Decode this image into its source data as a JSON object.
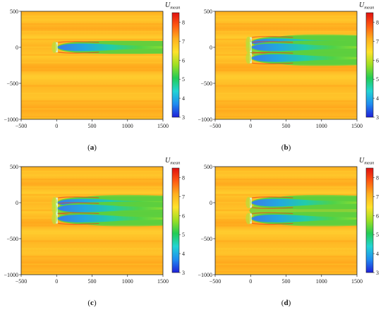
{
  "figure": {
    "variable_symbol": "U",
    "variable_subscript": "mean",
    "colormap": [
      "#1f1fd8",
      "#1f8cf0",
      "#22d4d4",
      "#22cc55",
      "#9ee022",
      "#ffe22a",
      "#ffb01e",
      "#ff5a12",
      "#e01010"
    ]
  },
  "chart_data": [
    {
      "type": "heatmap",
      "panel": "a",
      "caption": "(a)",
      "xlim": [
        -500,
        1500
      ],
      "ylim": [
        -1000,
        500
      ],
      "x_ticks": [
        "−500",
        "0",
        "500",
        "1000",
        "1500"
      ],
      "y_ticks": [
        "500",
        "0",
        "−500",
        "−1000"
      ],
      "colorbar_ticks": [
        "8",
        "7",
        "6",
        "5",
        "4",
        "3"
      ],
      "colorbar_range": [
        3,
        8.5
      ],
      "background_value": 7.4,
      "turbines_y": [
        0
      ],
      "wake_min_value": 4.2
    },
    {
      "type": "heatmap",
      "panel": "b",
      "caption": "(b)",
      "xlim": [
        -500,
        1500
      ],
      "ylim": [
        -1000,
        500
      ],
      "x_ticks": [
        "−500",
        "0",
        "500",
        "1000",
        "1500"
      ],
      "y_ticks": [
        "500",
        "0",
        "−500",
        "−1000"
      ],
      "colorbar_ticks": [
        "8",
        "7",
        "6",
        "5",
        "4",
        "3"
      ],
      "colorbar_range": [
        3,
        8.5
      ],
      "background_value": 7.4,
      "turbines_y": [
        70,
        0,
        -150
      ],
      "wake_min_value": 3.8
    },
    {
      "type": "heatmap",
      "panel": "c",
      "caption": "(c)",
      "xlim": [
        -500,
        1500
      ],
      "ylim": [
        -1000,
        500
      ],
      "x_ticks": [
        "−500",
        "0",
        "500",
        "1000",
        "1500"
      ],
      "y_ticks": [
        "500",
        "0",
        "−500",
        "−1000"
      ],
      "colorbar_ticks": [
        "8",
        "7",
        "6",
        "5",
        "4",
        "3"
      ],
      "colorbar_range": [
        3,
        8.5
      ],
      "background_value": 7.4,
      "turbines_y": [
        0,
        -80,
        -220
      ],
      "wake_min_value": 4.3
    },
    {
      "type": "heatmap",
      "panel": "d",
      "caption": "(d)",
      "xlim": [
        -500,
        1500
      ],
      "ylim": [
        -1000,
        500
      ],
      "x_ticks": [
        "−500",
        "0",
        "500",
        "1000",
        "1500"
      ],
      "y_ticks": [
        "500",
        "0",
        "−500",
        "−1000"
      ],
      "colorbar_ticks": [
        "8",
        "7",
        "6",
        "5",
        "4",
        "3"
      ],
      "colorbar_range": [
        3,
        8.5
      ],
      "background_value": 7.4,
      "turbines_y": [
        0,
        -220
      ],
      "wake_min_value": 4.0
    }
  ]
}
